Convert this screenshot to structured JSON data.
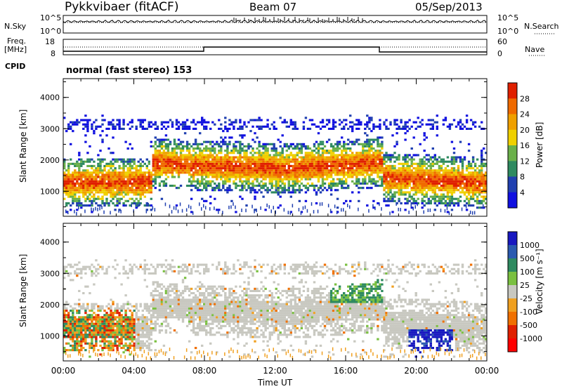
{
  "header": {
    "station": "Pykkvibaer (fitACF)",
    "beam": "Beam 07",
    "date": "05/Sep/2013"
  },
  "strip_labels": {
    "nsky": "N.Sky",
    "nsearch": "N.Search",
    "freq": "Freq.",
    "freq_unit": "[MHz]",
    "nave": "Nave",
    "cpid": "CPID",
    "cpid_value": "normal (fast stereo) 153"
  },
  "strip_ticks": {
    "nsky_left": [
      "10^5",
      "10^0"
    ],
    "nsky_right": [
      "10^5",
      "10^0"
    ],
    "freq_left": [
      "18",
      "8"
    ],
    "nave_right": [
      "60",
      "0"
    ]
  },
  "colors": {
    "frame": "#000000",
    "background": "#ffffff",
    "grey_scatter": "#c8c8c0"
  },
  "chart_data": [
    {
      "type": "heatmap",
      "name": "power",
      "xlabel": "",
      "ylabel": "Slant Range [km]",
      "xlim_hours": [
        0,
        24
      ],
      "ylim": [
        200,
        4600
      ],
      "yticks": [
        1000,
        2000,
        3000,
        4000
      ],
      "colorbar_label": "Power [dB]",
      "colorbar_ticks": [
        "4",
        "8",
        "12",
        "16",
        "20",
        "24",
        "28"
      ],
      "colorbar_colors": [
        "#1010e0",
        "#2040b0",
        "#2e8a60",
        "#6ab04a",
        "#f0d000",
        "#f0a000",
        "#f06a00",
        "#e02000"
      ],
      "vmin": 0,
      "vmax": 32
    },
    {
      "type": "heatmap",
      "name": "velocity",
      "xlabel": "Time UT",
      "ylabel": "Slant Range [km]",
      "xlim_hours": [
        0,
        24
      ],
      "ylim": [
        200,
        4600
      ],
      "yticks": [
        1000,
        2000,
        3000,
        4000
      ],
      "xticks": [
        "00:00",
        "04:00",
        "08:00",
        "12:00",
        "16:00",
        "20:00",
        "00:00"
      ],
      "colorbar_label": "Velocity [m s⁻¹]",
      "colorbar_ticks": [
        "1000",
        "500",
        "100",
        "25",
        "-25",
        "-100",
        "-500",
        "-1000"
      ],
      "colorbar_colors": [
        "#1818c0",
        "#2a5ab0",
        "#2e8a60",
        "#7ac040",
        "#c8c8c0",
        "#f0a020",
        "#f07000",
        "#e02000",
        "#ff0000"
      ]
    }
  ]
}
